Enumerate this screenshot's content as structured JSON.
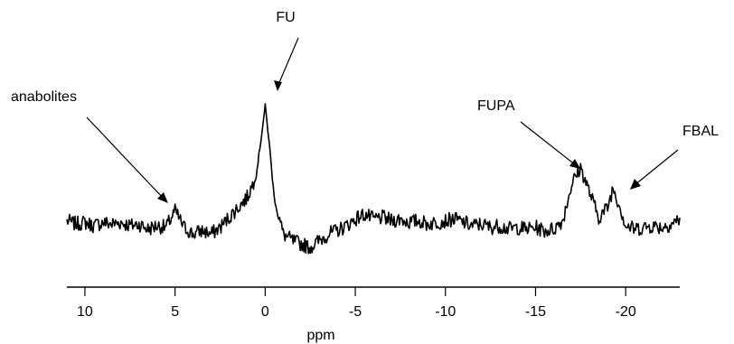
{
  "chart_data": {
    "type": "line",
    "title": "",
    "xlabel": "ppm",
    "ylabel": "",
    "xlim": [
      11,
      -23
    ],
    "x_reversed": true,
    "ylim": [
      0,
      1
    ],
    "grid": false,
    "legend": "none",
    "xticks": [
      10,
      5,
      0,
      -5,
      -10,
      -15,
      -20
    ],
    "xtick_labels": [
      "10",
      "5",
      "0",
      "-5",
      "-10",
      "-15",
      "-20"
    ],
    "series": [
      {
        "color": "#000000",
        "points": [
          [
            11.0,
            0.28
          ],
          [
            10.5,
            0.26
          ],
          [
            10.0,
            0.27
          ],
          [
            9.5,
            0.25
          ],
          [
            9.0,
            0.27
          ],
          [
            8.5,
            0.26
          ],
          [
            8.0,
            0.27
          ],
          [
            7.5,
            0.25
          ],
          [
            7.0,
            0.26
          ],
          [
            6.5,
            0.23
          ],
          [
            6.0,
            0.25
          ],
          [
            5.5,
            0.24
          ],
          [
            5.0,
            0.34
          ],
          [
            4.5,
            0.24
          ],
          [
            4.0,
            0.2
          ],
          [
            3.5,
            0.22
          ],
          [
            3.0,
            0.2
          ],
          [
            2.5,
            0.24
          ],
          [
            2.0,
            0.3
          ],
          [
            1.5,
            0.36
          ],
          [
            1.0,
            0.42
          ],
          [
            0.5,
            0.55
          ],
          [
            0.2,
            0.8
          ],
          [
            0.0,
            0.97
          ],
          [
            -0.2,
            0.78
          ],
          [
            -0.5,
            0.42
          ],
          [
            -1.0,
            0.2
          ],
          [
            -1.5,
            0.16
          ],
          [
            -2.0,
            0.14
          ],
          [
            -2.5,
            0.12
          ],
          [
            -3.0,
            0.16
          ],
          [
            -3.5,
            0.2
          ],
          [
            -4.0,
            0.22
          ],
          [
            -4.5,
            0.25
          ],
          [
            -5.0,
            0.29
          ],
          [
            -5.5,
            0.32
          ],
          [
            -6.0,
            0.29
          ],
          [
            -6.5,
            0.3
          ],
          [
            -7.0,
            0.28
          ],
          [
            -7.5,
            0.29
          ],
          [
            -8.0,
            0.27
          ],
          [
            -8.5,
            0.28
          ],
          [
            -9.0,
            0.26
          ],
          [
            -9.5,
            0.27
          ],
          [
            -10.0,
            0.28
          ],
          [
            -10.5,
            0.29
          ],
          [
            -11.0,
            0.27
          ],
          [
            -11.5,
            0.25
          ],
          [
            -12.0,
            0.26
          ],
          [
            -12.5,
            0.24
          ],
          [
            -13.0,
            0.25
          ],
          [
            -13.5,
            0.23
          ],
          [
            -14.0,
            0.24
          ],
          [
            -14.5,
            0.23
          ],
          [
            -15.0,
            0.24
          ],
          [
            -15.5,
            0.22
          ],
          [
            -16.0,
            0.23
          ],
          [
            -16.5,
            0.28
          ],
          [
            -17.0,
            0.5
          ],
          [
            -17.5,
            0.6
          ],
          [
            -18.0,
            0.45
          ],
          [
            -18.5,
            0.3
          ],
          [
            -19.0,
            0.36
          ],
          [
            -19.3,
            0.48
          ],
          [
            -19.7,
            0.36
          ],
          [
            -20.0,
            0.25
          ],
          [
            -20.5,
            0.23
          ],
          [
            -21.0,
            0.24
          ],
          [
            -21.5,
            0.25
          ],
          [
            -22.0,
            0.24
          ],
          [
            -22.5,
            0.26
          ],
          [
            -23.0,
            0.29
          ]
        ]
      }
    ],
    "annotations": [
      {
        "text": "FU",
        "x": -0.2,
        "y": 0.98
      },
      {
        "text": "anabolites",
        "x": 4.5,
        "y": 0.37
      },
      {
        "text": "FUPA",
        "x": -17.4,
        "y": 0.64
      },
      {
        "text": "FBAL",
        "x": -20.0,
        "y": 0.54
      }
    ]
  }
}
